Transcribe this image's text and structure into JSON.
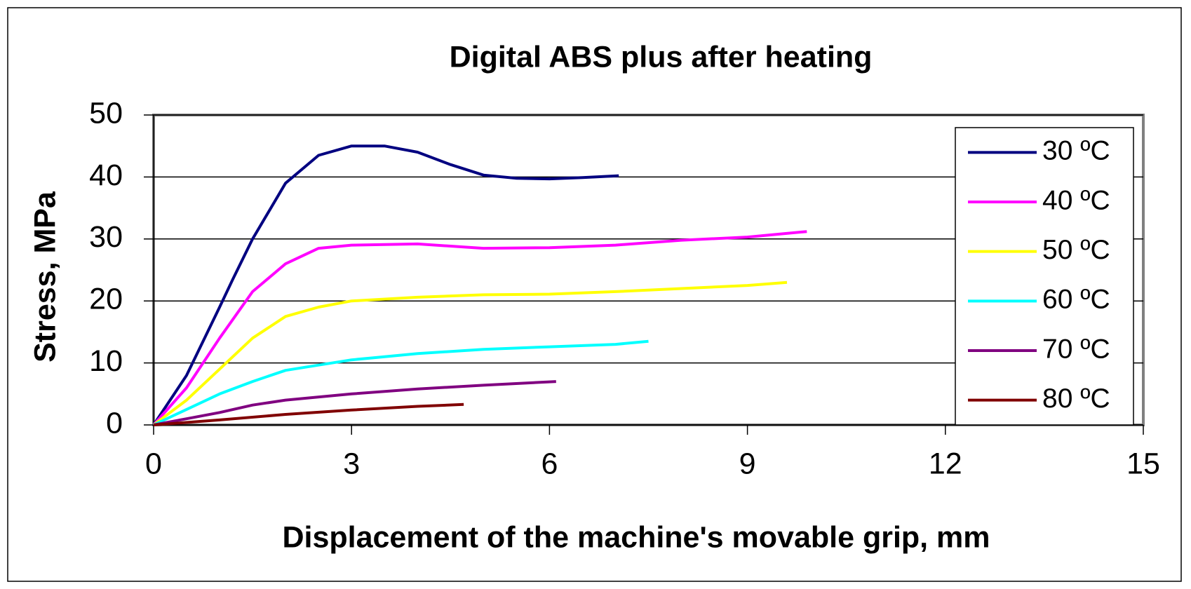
{
  "chart_data": {
    "type": "line",
    "title": "Digital ABS plus after heating",
    "x_label": "Displacement  of the machine's movable grip, mm",
    "y_label": "Stress, MPa",
    "xlim": [
      0,
      15
    ],
    "xticks": [
      0,
      3,
      6,
      9,
      12,
      15
    ],
    "ylim": [
      0,
      50
    ],
    "yticks": [
      0,
      10,
      20,
      30,
      40,
      50
    ],
    "grid": true,
    "legend": "right",
    "series": [
      {
        "name": "30 ºC",
        "color": "#000080",
        "x": [
          0,
          0.5,
          1,
          1.2,
          1.5,
          2,
          2.5,
          3,
          3.5,
          4,
          4.5,
          5,
          5.5,
          6,
          6.5,
          7.05
        ],
        "values": [
          0,
          8,
          19,
          23.5,
          30,
          39,
          43.5,
          45,
          45,
          44,
          42,
          40.3,
          39.8,
          39.7,
          39.9,
          40.2
        ]
      },
      {
        "name": "40 ºC",
        "color": "#ff00ff",
        "x": [
          0,
          0.5,
          1,
          1.5,
          2,
          2.5,
          3,
          4,
          5,
          6,
          7,
          8,
          9,
          9.9
        ],
        "values": [
          0,
          6,
          14,
          21.5,
          26,
          28.5,
          29,
          29.2,
          28.5,
          28.6,
          29,
          29.8,
          30.3,
          31.2
        ]
      },
      {
        "name": "50 ºC",
        "color": "#ffff00",
        "x": [
          0,
          0.5,
          1,
          1.5,
          2,
          2.5,
          3,
          4,
          5,
          6,
          7,
          8,
          9,
          9.6
        ],
        "values": [
          0,
          4,
          9,
          14,
          17.5,
          19,
          20,
          20.6,
          21,
          21.1,
          21.5,
          22,
          22.5,
          23
        ]
      },
      {
        "name": "60 ºC",
        "color": "#00ffff",
        "x": [
          0,
          0.5,
          1,
          1.5,
          2,
          3,
          4,
          5,
          6,
          7,
          7.5
        ],
        "values": [
          0,
          2.5,
          5,
          7,
          8.8,
          10.5,
          11.5,
          12.2,
          12.6,
          13,
          13.5
        ]
      },
      {
        "name": "70 ºC",
        "color": "#800080",
        "x": [
          0,
          0.5,
          1,
          1.5,
          2,
          3,
          4,
          5,
          6.1
        ],
        "values": [
          0,
          1,
          2,
          3.2,
          4,
          5,
          5.8,
          6.4,
          7
        ]
      },
      {
        "name": "80 ºC",
        "color": "#800000",
        "x": [
          0,
          1,
          2,
          3,
          4,
          4.7
        ],
        "values": [
          0,
          0.8,
          1.7,
          2.4,
          3,
          3.3
        ]
      }
    ]
  }
}
